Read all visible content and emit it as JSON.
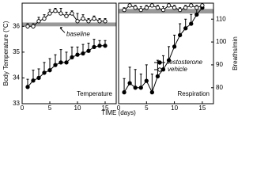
{
  "chart_data": [
    {
      "type": "line",
      "ylabel": "Body Temperature (°C)",
      "x_label": "TIME (days)",
      "panel_label": "Temperature",
      "band_label": "baseline",
      "baseline_band": [
        36.0,
        36.15
      ],
      "band_color": "#999999",
      "x": [
        1,
        2,
        3,
        4,
        5,
        6,
        7,
        8,
        9,
        10,
        11,
        12,
        13,
        14,
        15
      ],
      "xlim": [
        0,
        17
      ],
      "xticks": [
        0,
        5,
        10,
        15
      ],
      "ylim": [
        33,
        36.9
      ],
      "yticks": [
        33,
        34,
        35,
        36
      ],
      "yaxis_side": "left",
      "series": [
        {
          "color": "#000000",
          "marker": "filled",
          "values": [
            33.65,
            33.9,
            34.0,
            34.2,
            34.3,
            34.5,
            34.6,
            34.6,
            34.8,
            34.9,
            34.95,
            35.05,
            35.2,
            35.25,
            35.25
          ],
          "errors": [
            0.3,
            0.4,
            0.35,
            0.4,
            0.45,
            0.4,
            0.5,
            0.4,
            0.4,
            0.3,
            0.35,
            0.3,
            0.3,
            0.2,
            0.2
          ]
        },
        {
          "color": "#000000",
          "marker": "open",
          "values": [
            36.0,
            36.0,
            36.2,
            36.3,
            36.5,
            36.6,
            36.5,
            36.4,
            36.5,
            36.2,
            36.3,
            36.2,
            36.3,
            36.2,
            36.2
          ],
          "errors": [
            0.1,
            0.1,
            0.15,
            0.15,
            0.15,
            0.1,
            0.2,
            0.15,
            0.1,
            0.3,
            0.15,
            0.1,
            0.1,
            0.1,
            0.1
          ]
        }
      ]
    },
    {
      "type": "line",
      "ylabel": "Breaths/min",
      "panel_label": "Respiration",
      "baseline_band": [
        112.5,
        114.5
      ],
      "band_color": "#999999",
      "x": [
        1,
        2,
        3,
        4,
        5,
        6,
        7,
        8,
        9,
        10,
        11,
        12,
        13,
        14,
        15
      ],
      "xlim": [
        0,
        17
      ],
      "xticks": [
        0,
        5,
        10,
        15
      ],
      "ylim": [
        73,
        117
      ],
      "yticks": [
        80,
        90,
        100,
        110
      ],
      "yaxis_side": "right",
      "series": [
        {
          "name": "testosterone",
          "color": "#000000",
          "marker": "filled",
          "values": [
            78,
            82,
            80,
            80,
            83,
            78,
            85,
            88,
            92,
            98,
            103,
            106,
            108,
            112,
            115
          ],
          "errors": [
            6,
            7,
            8,
            6,
            7,
            8,
            7,
            6,
            6,
            5,
            5,
            4,
            4,
            3,
            2
          ]
        },
        {
          "name": "vehicle",
          "color": "#000000",
          "marker": "open",
          "values": [
            114,
            116,
            115,
            114,
            115,
            116,
            115,
            114,
            116,
            115,
            114,
            115,
            116,
            115,
            116
          ],
          "errors": [
            1,
            1,
            1,
            1.5,
            1,
            1,
            1,
            1.5,
            1,
            1,
            1,
            1,
            1,
            1,
            1
          ]
        }
      ]
    }
  ]
}
